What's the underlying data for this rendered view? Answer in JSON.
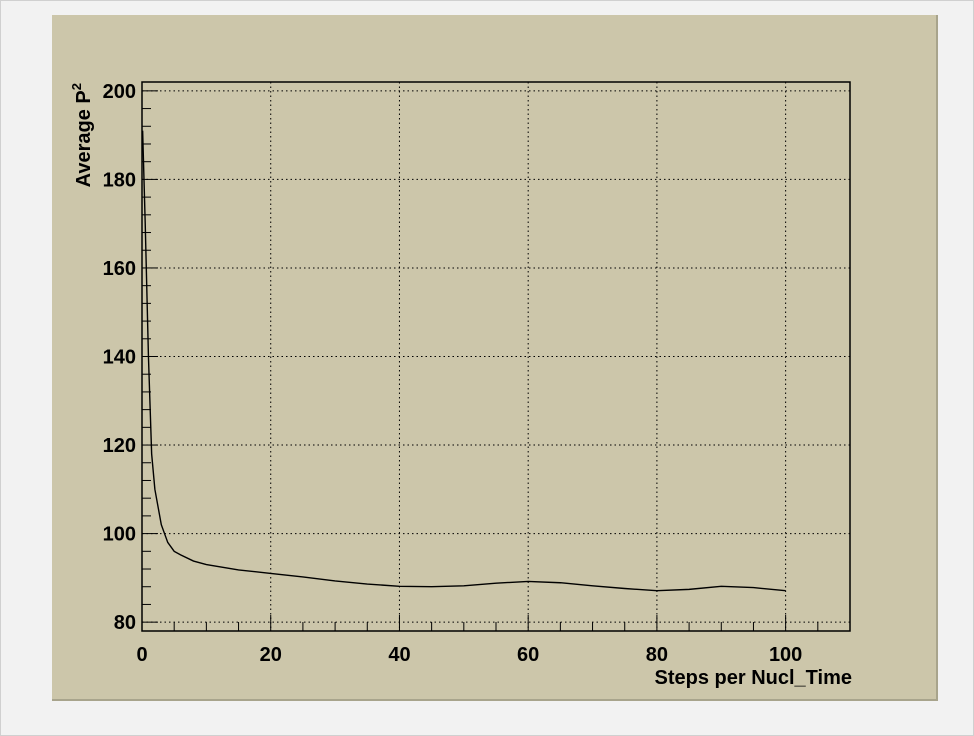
{
  "colors": {
    "canvas_background": "#f2f2f2",
    "pad_background": "#ccc6aa",
    "grid": "#000000",
    "line": "#000000"
  },
  "chart_data": {
    "type": "line",
    "xlabel": "Steps per Nucl_Time",
    "ylabel_base": "Average P",
    "ylabel_superscript": "2",
    "xlim": [
      0,
      110
    ],
    "ylim": [
      78,
      202
    ],
    "x_ticks": [
      0,
      20,
      40,
      60,
      80,
      100
    ],
    "y_ticks": [
      80,
      100,
      120,
      140,
      160,
      180,
      200
    ],
    "grid": true,
    "series": [
      {
        "x": [
          0.1,
          0.5,
          1,
          1.5,
          2,
          3,
          4,
          5,
          6,
          8,
          10,
          15,
          20,
          25,
          30,
          35,
          40,
          45,
          50,
          55,
          60,
          65,
          70,
          75,
          80,
          85,
          90,
          95,
          100
        ],
        "y": [
          191,
          170,
          140,
          118,
          110,
          102,
          98,
          96,
          95.2,
          93.8,
          93.0,
          91.8,
          91.0,
          90.2,
          89.3,
          88.6,
          88.1,
          88.0,
          88.2,
          88.8,
          89.2,
          88.9,
          88.2,
          87.6,
          87.1,
          87.4,
          88.1,
          87.8,
          87.1
        ]
      }
    ]
  }
}
